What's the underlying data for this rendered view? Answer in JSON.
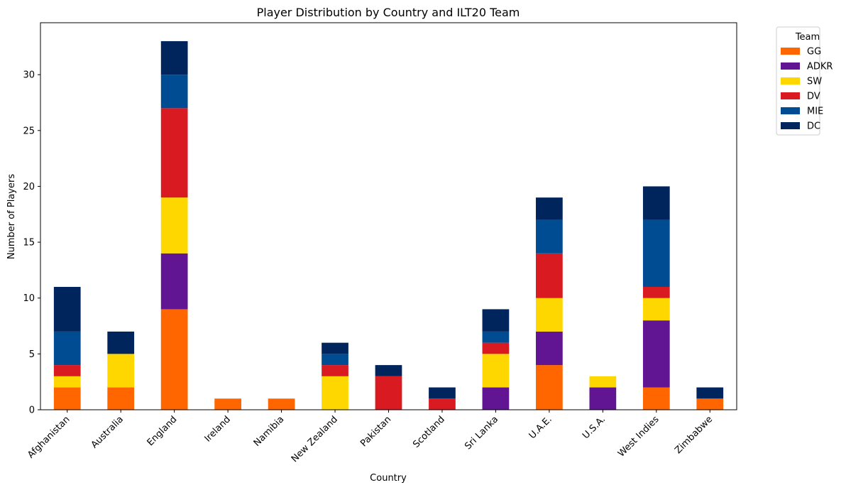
{
  "chart_data": {
    "type": "bar",
    "stacked": true,
    "title": "Player Distribution by Country and ILT20 Team",
    "xlabel": "Country",
    "ylabel": "Number of Players",
    "ylim": [
      0,
      34.65
    ],
    "yticks": [
      0,
      5,
      10,
      15,
      20,
      25,
      30
    ],
    "grid": false,
    "legend": {
      "title": "Team",
      "placement": "outside-top-right"
    },
    "categories": [
      "Afghanistan",
      "Australia",
      "England",
      "Ireland",
      "Namibia",
      "New Zealand",
      "Pakistan",
      "Scotland",
      "Sri Lanka",
      "U.A.E.",
      "U.S.A.",
      "West Indies",
      "Zimbabwe"
    ],
    "series": [
      {
        "name": "GG",
        "color": "#ff6600",
        "values": [
          2,
          2,
          9,
          1,
          1,
          0,
          0,
          0,
          0,
          4,
          0,
          2,
          1
        ]
      },
      {
        "name": "ADKR",
        "color": "#621593",
        "values": [
          0,
          0,
          5,
          0,
          0,
          0,
          0,
          0,
          2,
          3,
          2,
          6,
          0
        ]
      },
      {
        "name": "SW",
        "color": "#ffd700",
        "values": [
          1,
          3,
          5,
          0,
          0,
          3,
          0,
          0,
          3,
          3,
          1,
          2,
          0
        ]
      },
      {
        "name": "DV",
        "color": "#da1a21",
        "values": [
          1,
          0,
          8,
          0,
          0,
          1,
          3,
          1,
          1,
          4,
          0,
          1,
          0
        ]
      },
      {
        "name": "MIE",
        "color": "#004c93",
        "values": [
          3,
          0,
          3,
          0,
          0,
          1,
          0,
          0,
          1,
          3,
          0,
          6,
          0
        ]
      },
      {
        "name": "DC",
        "color": "#00255c",
        "values": [
          4,
          2,
          3,
          0,
          0,
          1,
          1,
          1,
          2,
          2,
          0,
          3,
          1
        ]
      }
    ]
  }
}
